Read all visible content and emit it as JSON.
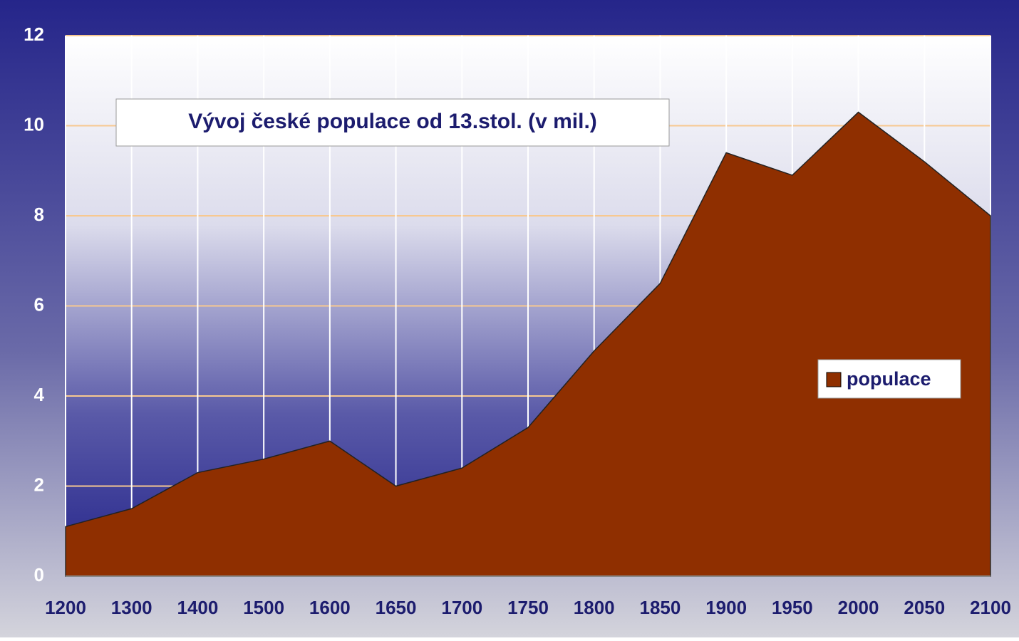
{
  "chart_data": {
    "type": "area",
    "title": "Vývoj české populace od 13.stol. (v mil.)",
    "categories": [
      "1200",
      "1300",
      "1400",
      "1500",
      "1600",
      "1650",
      "1700",
      "1750",
      "1800",
      "1850",
      "1900",
      "1950",
      "2000",
      "2050",
      "2100"
    ],
    "series": [
      {
        "name": "populace",
        "color": "#8f2f00",
        "values": [
          1.1,
          1.5,
          2.3,
          2.6,
          3.0,
          2.0,
          2.4,
          3.3,
          5.0,
          6.5,
          9.4,
          8.9,
          10.3,
          9.2,
          8.0
        ]
      }
    ],
    "ylim": [
      0,
      12
    ],
    "yticks": [
      0,
      2,
      4,
      6,
      8,
      10,
      12
    ],
    "grid": true,
    "legend": "right"
  }
}
